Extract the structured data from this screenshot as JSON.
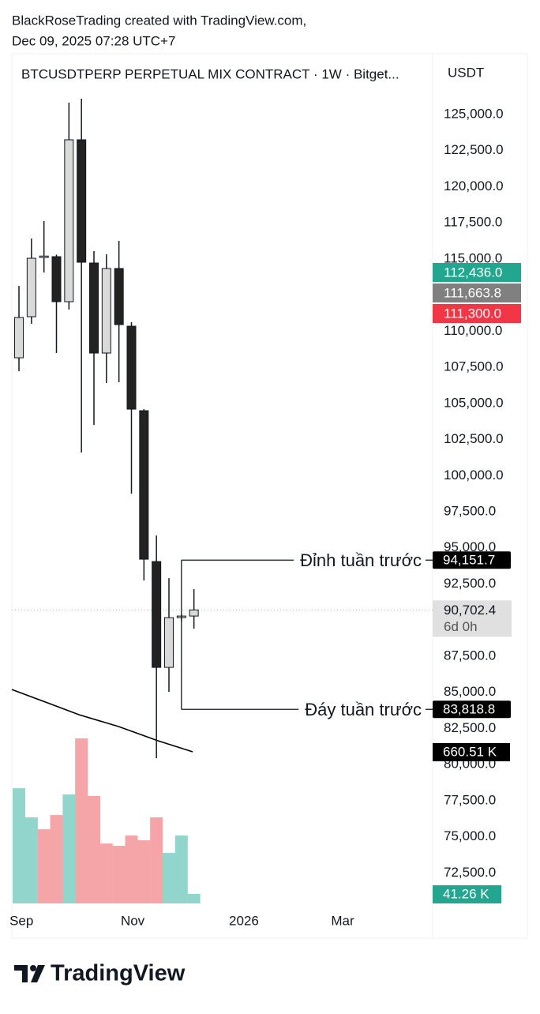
{
  "header": {
    "line1": "BlackRoseTrading created with TradingView.com,",
    "line2": "Dec 09, 2025 07:28 UTC+7"
  },
  "chart_data": {
    "type": "candlestick",
    "title": "BTCUSDTPERP PERPETUAL MIX CONTRACT · 1W · Bitget...",
    "currency": "USDT",
    "x": [
      0,
      1,
      2,
      3,
      4,
      5,
      6,
      7,
      8,
      9,
      10,
      11,
      12,
      13,
      14
    ],
    "open": [
      108158,
      111002,
      115100,
      115158,
      112041,
      123250,
      114720,
      108487,
      114338,
      110345,
      104495,
      94051,
      86724,
      90169,
      90278
    ],
    "high": [
      113134,
      116415,
      117618,
      115300,
      125820,
      126094,
      115540,
      115322,
      116251,
      110619,
      104600,
      95855,
      92903,
      90400,
      92137
    ],
    "low": [
      107229,
      110510,
      114064,
      108487,
      111494,
      101597,
      103510,
      106409,
      106464,
      98753,
      92738,
      80436,
      85030,
      89900,
      89403
    ],
    "close": [
      110947,
      115048,
      115200,
      112041,
      123250,
      114775,
      108487,
      114338,
      110455,
      104604,
      94215,
      86724,
      90169,
      90278,
      90702.4
    ],
    "up_color": "#d9d9d9",
    "down_color": "#222222",
    "xlim": [
      -0.57,
      33.1
    ],
    "xticks": [
      {
        "value": 0.2,
        "label": "Sep"
      },
      {
        "value": 9.1,
        "label": "Nov"
      },
      {
        "value": 18,
        "label": "2026"
      },
      {
        "value": 25.9,
        "label": "Mar"
      }
    ],
    "ylim": [
      70000,
      129100
    ],
    "yticks": [
      {
        "value": 72500,
        "label": "72,500.0"
      },
      {
        "value": 75000,
        "label": "75,000.0"
      },
      {
        "value": 77500,
        "label": "77,500.0"
      },
      {
        "value": 80000,
        "label": "80,000.0"
      },
      {
        "value": 82500,
        "label": "82,500.0"
      },
      {
        "value": 85000,
        "label": "85,000.0"
      },
      {
        "value": 87500,
        "label": "87,500.0"
      },
      {
        "value": 90000,
        "label": "90,000.0"
      },
      {
        "value": 92500,
        "label": "92,500.0"
      },
      {
        "value": 95000,
        "label": "95,000.0"
      },
      {
        "value": 97500,
        "label": "97,500.0"
      },
      {
        "value": 100000,
        "label": "100,000.0"
      },
      {
        "value": 102500,
        "label": "102,500.0"
      },
      {
        "value": 105000,
        "label": "105,000.0"
      },
      {
        "value": 107500,
        "label": "107,500.0"
      },
      {
        "value": 110000,
        "label": "110,000.0"
      },
      {
        "value": 112500,
        "label": "112,500.0"
      },
      {
        "value": 115000,
        "label": "115,000.0"
      },
      {
        "value": 117500,
        "label": "117,500.0"
      },
      {
        "value": 120000,
        "label": "120,000.0"
      },
      {
        "value": 122500,
        "label": "122,500.0"
      },
      {
        "value": 125000,
        "label": "125,000.0"
      }
    ],
    "current_price": {
      "value": 90702.4,
      "label": "90,702.4",
      "countdown": "6d 0h"
    },
    "price_labels": [
      {
        "value": 112436,
        "label": "112,436.0",
        "color": "#22a68f"
      },
      {
        "value": 111663.8,
        "label": "111,663.8",
        "color": "#808080"
      },
      {
        "value": 111300,
        "label": "111,300.0",
        "color": "#f23645"
      }
    ],
    "annotations": [
      {
        "text": "Đỉnh tuần trước",
        "value": 94151.7,
        "label": "94,151.7"
      },
      {
        "text": "Đáy tuần trước",
        "value": 83818.8,
        "label": "83,818.8"
      }
    ],
    "volume": {
      "values": [
        502,
        375,
        323,
        385,
        475,
        719,
        468,
        261,
        251,
        296,
        275,
        375,
        220,
        296,
        41.26
      ],
      "value_labels": [
        null,
        null,
        null,
        null,
        null,
        null,
        null,
        null,
        null,
        null,
        null,
        null,
        null,
        null,
        "41.26 K"
      ],
      "colors": [
        "#92d5cc",
        "#92d5cc",
        "#f5a5a8",
        "#f5a5a8",
        "#92d5cc",
        "#f5a5a8",
        "#f5a5a8",
        "#f5a5a8",
        "#f5a5a8",
        "#f5a5a8",
        "#f5a5a8",
        "#f5a5a8",
        "#92d5cc",
        "#92d5cc",
        "#92d5cc"
      ],
      "label_color": "#22a68f"
    },
    "volume_ma": {
      "x": [
        -0.57,
        2.27,
        4.8,
        7.95,
        11.1,
        13.9
      ],
      "values": [
        932,
        874,
        822,
        771,
        709,
        660.51
      ],
      "value_labels": [
        null,
        null,
        null,
        null,
        null,
        "660.51 K"
      ],
      "color": "#000000"
    }
  },
  "footer": {
    "logo": "TradingView"
  }
}
